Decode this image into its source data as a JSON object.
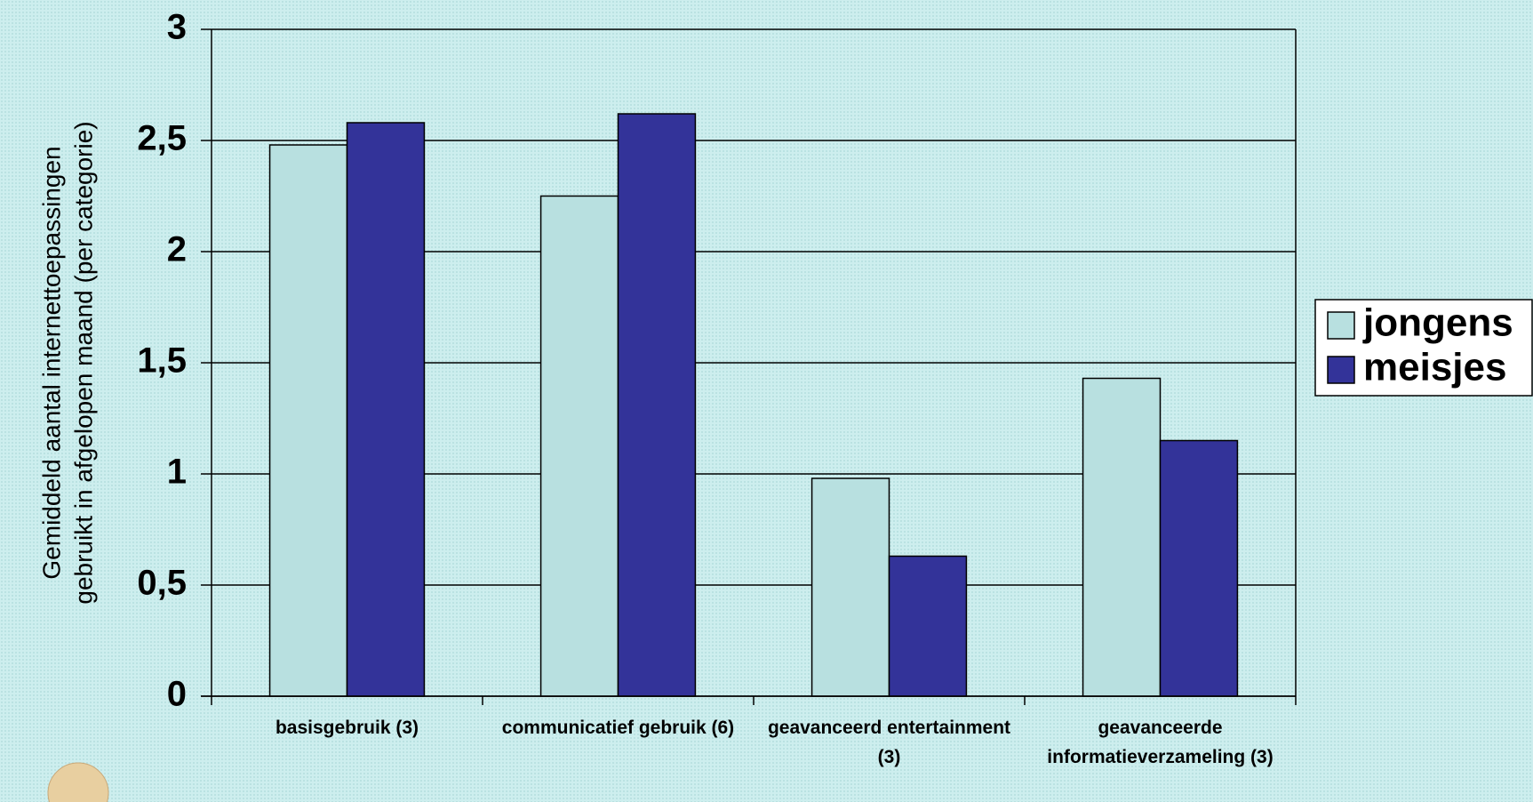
{
  "chart_data": {
    "type": "bar",
    "y_label": [
      "Gemiddeld aantal internettoepassingen",
      "gebruikt in afgelopen maand (per categorie)"
    ],
    "categories": [
      "basisgebruik (3)",
      "communicatief gebruik (6)",
      "geavanceerd entertainment (3)",
      "geavanceerde informatieverzameling (3)"
    ],
    "series": [
      {
        "name": "jongens",
        "color": "#b8e0e0",
        "values": [
          2.48,
          2.25,
          0.98,
          1.43
        ]
      },
      {
        "name": "meisjes",
        "color": "#333399",
        "values": [
          2.58,
          2.62,
          0.63,
          1.15
        ]
      }
    ],
    "ylim": [
      0,
      3
    ],
    "yticks": [
      0,
      {
        "value": 0.5,
        "label": "0,5"
      },
      1,
      {
        "value": 1.5,
        "label": "1,5"
      },
      2,
      {
        "value": 2.5,
        "label": "2,5"
      },
      3
    ],
    "grid": true,
    "legend": "right"
  }
}
